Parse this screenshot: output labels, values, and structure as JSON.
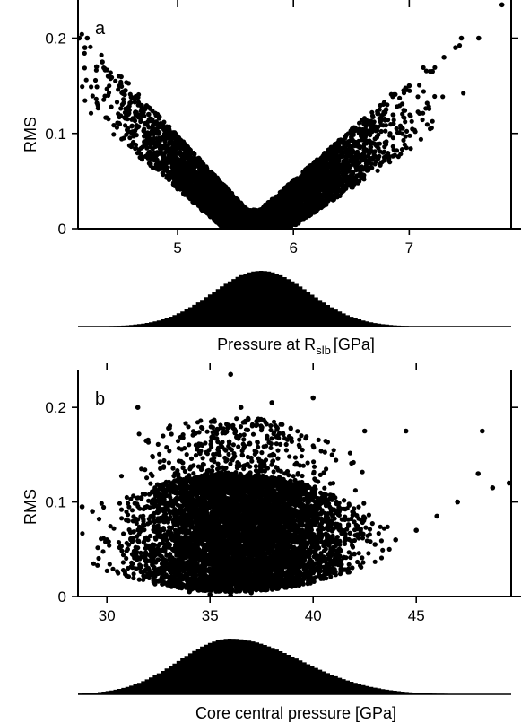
{
  "chart_data": [
    {
      "type": "scatter",
      "panel_label": "a",
      "ylabel": "RMS",
      "xlabel": "Pressure at R",
      "xlabel_sub": "slb",
      "xlabel_unit": "[GPa]",
      "xlim": [
        4.14,
        7.88
      ],
      "ylim": [
        0,
        0.24
      ],
      "xticks": [
        "5",
        "6",
        "7"
      ],
      "xtick_values": [
        5,
        6,
        7
      ],
      "yticks": [
        "0",
        "0.1",
        "0.2"
      ],
      "ytick_values": [
        0,
        0.1,
        0.2
      ],
      "grid": false,
      "marker_color": "#000000",
      "shape": "V-shaped envelope, minimum RMS near 5.65 GPa",
      "series": [
        {
          "values": [
            [
              4.15,
              0.2
            ],
            [
              4.2,
              0.19
            ],
            [
              4.22,
              0.2
            ],
            [
              4.3,
              0.17
            ],
            [
              4.35,
              0.175
            ],
            [
              4.4,
              0.16
            ],
            [
              4.5,
              0.15
            ],
            [
              4.55,
              0.145
            ],
            [
              4.6,
              0.138
            ],
            [
              4.75,
              0.12
            ],
            [
              4.9,
              0.1
            ],
            [
              5.0,
              0.085
            ],
            [
              5.1,
              0.07
            ],
            [
              5.2,
              0.055
            ],
            [
              5.3,
              0.04
            ],
            [
              5.4,
              0.03
            ],
            [
              5.5,
              0.015
            ],
            [
              5.6,
              0.005
            ],
            [
              5.7,
              0.003
            ],
            [
              5.8,
              0.01
            ],
            [
              5.9,
              0.02
            ],
            [
              6.0,
              0.035
            ],
            [
              6.2,
              0.05
            ],
            [
              6.4,
              0.075
            ],
            [
              6.6,
              0.1
            ],
            [
              6.8,
              0.125
            ],
            [
              7.0,
              0.15
            ],
            [
              7.2,
              0.165
            ],
            [
              7.3,
              0.18
            ],
            [
              7.4,
              0.19
            ],
            [
              7.45,
              0.2
            ],
            [
              7.6,
              0.2
            ],
            [
              7.8,
              0.235
            ],
            [
              7.9,
              0.205
            ]
          ]
        }
      ],
      "histogram": {
        "description": "marginal distribution of pressure at R_slb",
        "peak": 5.72,
        "relative_height": 1.0
      }
    },
    {
      "type": "scatter",
      "panel_label": "b",
      "ylabel": "RMS",
      "xlabel": "Core central pressure [GPa]",
      "xlim": [
        28.6,
        49.6
      ],
      "ylim": [
        0,
        0.24
      ],
      "xticks": [
        "30",
        "35",
        "40",
        "45"
      ],
      "xtick_values": [
        30,
        35,
        40,
        45
      ],
      "yticks": [
        "0",
        "0.1",
        "0.2"
      ],
      "ytick_values": [
        0,
        0.1,
        0.2
      ],
      "grid": false,
      "marker_color": "#000000",
      "shape": "dome-shaped cloud, densest 33-40 GPa",
      "series": [
        {
          "values": [
            [
              28.8,
              0.095
            ],
            [
              29.3,
              0.09
            ],
            [
              30.0,
              0.06
            ],
            [
              31.0,
              0.05
            ],
            [
              32.0,
              0.03
            ],
            [
              33.0,
              0.015
            ],
            [
              34.0,
              0.005
            ],
            [
              35.0,
              0.002
            ],
            [
              36.0,
              0.001
            ],
            [
              37.0,
              0.004
            ],
            [
              38.0,
              0.01
            ],
            [
              39.0,
              0.018
            ],
            [
              40.0,
              0.025
            ],
            [
              41.0,
              0.035
            ],
            [
              42.0,
              0.045
            ],
            [
              43.0,
              0.055
            ],
            [
              44.0,
              0.06
            ],
            [
              45.0,
              0.07
            ],
            [
              46.0,
              0.085
            ],
            [
              47.0,
              0.1
            ],
            [
              48.0,
              0.13
            ],
            [
              48.2,
              0.175
            ],
            [
              48.7,
              0.115
            ],
            [
              49.5,
              0.12
            ],
            [
              36.0,
              0.235
            ],
            [
              36.5,
              0.2
            ],
            [
              38.0,
              0.205
            ],
            [
              40.0,
              0.21
            ],
            [
              42.5,
              0.175
            ],
            [
              44.5,
              0.175
            ],
            [
              31.5,
              0.2
            ]
          ]
        }
      ],
      "histogram": {
        "description": "marginal distribution of core central pressure",
        "peak": 36.0,
        "relative_height": 1.0
      }
    }
  ]
}
